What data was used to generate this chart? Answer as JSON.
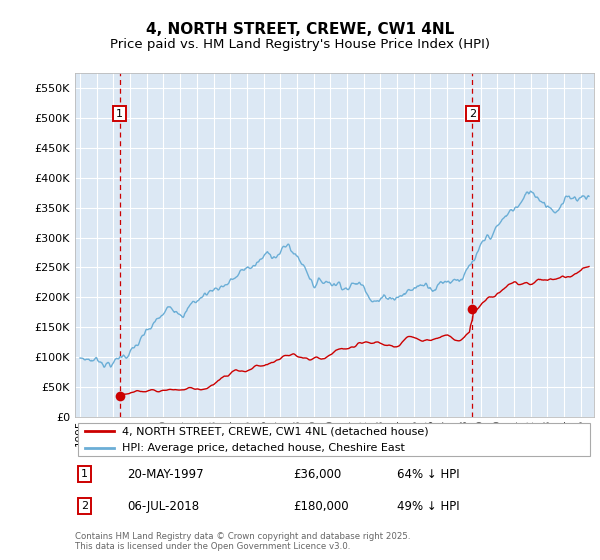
{
  "title": "4, NORTH STREET, CREWE, CW1 4NL",
  "subtitle": "Price paid vs. HM Land Registry's House Price Index (HPI)",
  "ylabel_ticks": [
    "£0",
    "£50K",
    "£100K",
    "£150K",
    "£200K",
    "£250K",
    "£300K",
    "£350K",
    "£400K",
    "£450K",
    "£500K",
    "£550K"
  ],
  "ytick_values": [
    0,
    50000,
    100000,
    150000,
    200000,
    250000,
    300000,
    350000,
    400000,
    450000,
    500000,
    550000
  ],
  "ylim": [
    0,
    575000
  ],
  "xlim_start": 1994.7,
  "xlim_end": 2025.8,
  "sale1_x": 1997.38,
  "sale1_y": 36000,
  "sale1_label": "1",
  "sale1_date": "20-MAY-1997",
  "sale1_price": "£36,000",
  "sale1_hpi": "64% ↓ HPI",
  "sale2_x": 2018.51,
  "sale2_y": 180000,
  "sale2_label": "2",
  "sale2_date": "06-JUL-2018",
  "sale2_price": "£180,000",
  "sale2_hpi": "49% ↓ HPI",
  "hpi_color": "#6baed6",
  "sale_color": "#cc0000",
  "dashed_color": "#cc0000",
  "fig_bg_color": "#ffffff",
  "plot_bg_color": "#dce8f4",
  "grid_color": "#ffffff",
  "legend_label_sale": "4, NORTH STREET, CREWE, CW1 4NL (detached house)",
  "legend_label_hpi": "HPI: Average price, detached house, Cheshire East",
  "footer": "Contains HM Land Registry data © Crown copyright and database right 2025.\nThis data is licensed under the Open Government Licence v3.0.",
  "title_fontsize": 11,
  "subtitle_fontsize": 9.5
}
